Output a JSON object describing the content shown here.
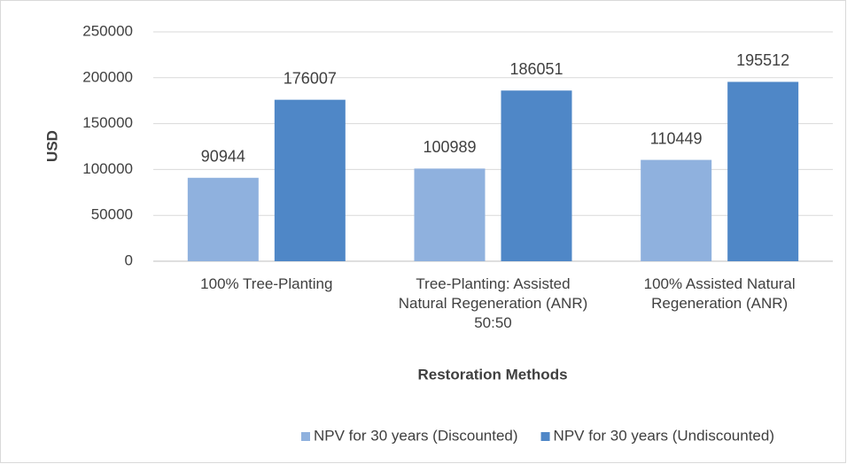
{
  "chart_data": {
    "type": "bar",
    "categories": [
      "100% Tree-Planting",
      "Tree-Planting: Assisted Natural Regeneration (ANR) 50:50",
      "100% Assisted Natural Regeneration (ANR)"
    ],
    "series": [
      {
        "name": "NPV for 30 years (Discounted)",
        "color": "#8fb1de",
        "values": [
          90944,
          100989,
          110449
        ]
      },
      {
        "name": "NPV for 30 years (Undiscounted)",
        "color": "#4f87c7",
        "values": [
          176007,
          186051,
          195512
        ]
      }
    ],
    "y_label": "USD",
    "x_label": "Restoration Methods",
    "ylim": [
      0,
      250000
    ],
    "yticks": [
      0,
      50000,
      100000,
      150000,
      200000,
      250000
    ],
    "grid": true,
    "legend": "bottom"
  }
}
